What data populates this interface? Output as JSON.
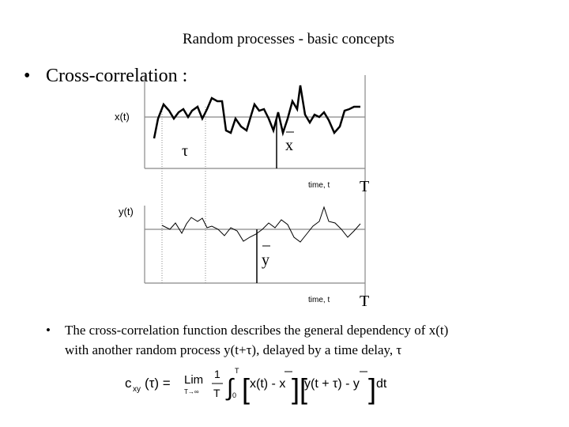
{
  "header": {
    "title": "Random processes - basic concepts"
  },
  "bullets": [
    "Cross-correlation :",
    "The cross-correlation function describes the general dependency of x(t)",
    "with another random process y(t+τ), delayed by a time delay, τ"
  ],
  "diagram": {
    "top": {
      "label": "x(t)",
      "lag": "τ",
      "mean": "x",
      "axis": "time, t",
      "length": "T"
    },
    "bottom": {
      "label": "y(t)",
      "mean": "y",
      "axis": "time, t",
      "length": "T"
    }
  },
  "formula": {
    "lhs": "c",
    "sub": "xy",
    "arg": "(τ) =",
    "lim": "Lim",
    "limsub": "T→∞",
    "num": "1",
    "den": "T",
    "integral": "∫",
    "lower": "0",
    "upper": "T",
    "term1": "x(t) - x",
    "term2": "y(t + τ) - y",
    "dt": "dt"
  }
}
